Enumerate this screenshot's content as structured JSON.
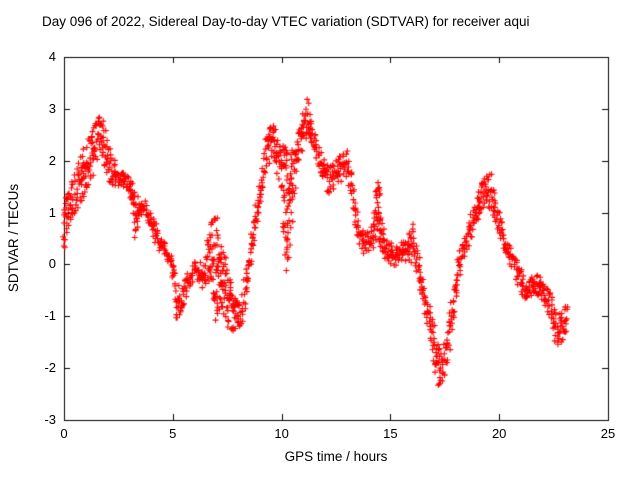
{
  "chart_data": {
    "type": "scatter",
    "title": "Day 096 of 2022, Sidereal Day-to-day VTEC variation (SDTVAR) for receiver aqui",
    "xlabel": "GPS time / hours",
    "ylabel": "SDTVAR / TECUs",
    "xlim": [
      0,
      25
    ],
    "ylim": [
      -3,
      4
    ],
    "xticks": [
      0,
      5,
      10,
      15,
      20,
      25
    ],
    "yticks": [
      -3,
      -2,
      -1,
      0,
      1,
      2,
      3,
      4
    ],
    "grid": false,
    "legend": "none",
    "marker": "plus",
    "series_color": "#ff0000",
    "axis_color": "#000000",
    "series_name": "SDTVAR",
    "points_note": "each point is [gps_hour, sdtvar_center_tecu, vertical_spread_tecu]",
    "points": [
      [
        0.0,
        0.8,
        1.0
      ],
      [
        0.2,
        1.05,
        0.7
      ],
      [
        0.4,
        1.25,
        0.7
      ],
      [
        0.6,
        1.45,
        0.8
      ],
      [
        0.8,
        1.65,
        0.9
      ],
      [
        1.0,
        1.85,
        1.0
      ],
      [
        1.2,
        2.05,
        0.9
      ],
      [
        1.4,
        2.25,
        0.9
      ],
      [
        1.6,
        2.5,
        0.7
      ],
      [
        1.8,
        2.45,
        0.8
      ],
      [
        2.0,
        2.1,
        0.8
      ],
      [
        2.2,
        1.8,
        0.6
      ],
      [
        2.4,
        1.7,
        0.45
      ],
      [
        2.6,
        1.65,
        0.35
      ],
      [
        2.8,
        1.6,
        0.35
      ],
      [
        3.0,
        1.5,
        0.4
      ],
      [
        3.15,
        1.35,
        0.5
      ],
      [
        3.3,
        0.95,
        0.9
      ],
      [
        3.45,
        1.1,
        0.4
      ],
      [
        3.6,
        1.1,
        0.3
      ],
      [
        3.8,
        1.05,
        0.3
      ],
      [
        4.0,
        0.9,
        0.4
      ],
      [
        4.2,
        0.6,
        0.45
      ],
      [
        4.4,
        0.4,
        0.35
      ],
      [
        4.6,
        0.3,
        0.3
      ],
      [
        4.8,
        0.15,
        0.3
      ],
      [
        5.0,
        -0.05,
        0.5
      ],
      [
        5.2,
        -0.7,
        0.8
      ],
      [
        5.4,
        -0.7,
        0.5
      ],
      [
        5.6,
        -0.45,
        0.4
      ],
      [
        5.8,
        -0.25,
        0.35
      ],
      [
        6.0,
        -0.1,
        0.3
      ],
      [
        6.2,
        -0.15,
        0.35
      ],
      [
        6.4,
        -0.2,
        0.5
      ],
      [
        6.6,
        0.15,
        0.9
      ],
      [
        6.8,
        0.3,
        1.4
      ],
      [
        7.0,
        -0.1,
        2.0
      ],
      [
        7.2,
        -0.35,
        1.6
      ],
      [
        7.4,
        -0.5,
        1.4
      ],
      [
        7.6,
        -0.7,
        1.1
      ],
      [
        7.8,
        -0.9,
        0.8
      ],
      [
        8.0,
        -1.0,
        0.6
      ],
      [
        8.2,
        -0.85,
        0.55
      ],
      [
        8.4,
        -0.3,
        0.6
      ],
      [
        8.6,
        0.3,
        0.6
      ],
      [
        8.8,
        0.85,
        0.6
      ],
      [
        9.0,
        1.35,
        0.6
      ],
      [
        9.2,
        1.8,
        0.7
      ],
      [
        9.4,
        2.3,
        0.8
      ],
      [
        9.6,
        2.45,
        0.6
      ],
      [
        9.8,
        2.1,
        0.8
      ],
      [
        10.0,
        1.85,
        1.0
      ],
      [
        10.2,
        1.0,
        2.6
      ],
      [
        10.4,
        1.25,
        1.8
      ],
      [
        10.6,
        1.8,
        1.0
      ],
      [
        10.8,
        2.2,
        0.8
      ],
      [
        11.0,
        2.65,
        0.8
      ],
      [
        11.2,
        2.9,
        0.75
      ],
      [
        11.4,
        2.6,
        0.6
      ],
      [
        11.6,
        2.25,
        0.55
      ],
      [
        11.8,
        1.95,
        0.5
      ],
      [
        12.0,
        1.75,
        0.6
      ],
      [
        12.2,
        1.6,
        0.55
      ],
      [
        12.4,
        1.7,
        0.5
      ],
      [
        12.6,
        1.8,
        0.5
      ],
      [
        12.8,
        1.9,
        0.5
      ],
      [
        13.0,
        1.95,
        0.55
      ],
      [
        13.2,
        1.55,
        0.55
      ],
      [
        13.4,
        0.95,
        0.6
      ],
      [
        13.6,
        0.55,
        0.5
      ],
      [
        13.8,
        0.4,
        0.4
      ],
      [
        14.0,
        0.45,
        0.4
      ],
      [
        14.2,
        0.55,
        0.5
      ],
      [
        14.45,
        1.1,
        1.3
      ],
      [
        14.6,
        0.6,
        0.8
      ],
      [
        14.8,
        0.3,
        0.5
      ],
      [
        15.0,
        0.2,
        0.45
      ],
      [
        15.2,
        0.15,
        0.4
      ],
      [
        15.4,
        0.2,
        0.4
      ],
      [
        15.6,
        0.25,
        0.4
      ],
      [
        15.8,
        0.3,
        0.5
      ],
      [
        16.0,
        0.4,
        0.9
      ],
      [
        16.2,
        0.1,
        0.55
      ],
      [
        16.4,
        -0.3,
        0.5
      ],
      [
        16.6,
        -0.7,
        0.5
      ],
      [
        16.8,
        -1.1,
        0.6
      ],
      [
        17.0,
        -1.5,
        0.8
      ],
      [
        17.2,
        -1.9,
        0.9
      ],
      [
        17.4,
        -2.1,
        0.7
      ],
      [
        17.6,
        -1.6,
        0.8
      ],
      [
        17.8,
        -1.0,
        0.7
      ],
      [
        18.0,
        -0.4,
        0.65
      ],
      [
        18.2,
        0.0,
        0.55
      ],
      [
        18.4,
        0.3,
        0.5
      ],
      [
        18.6,
        0.6,
        0.5
      ],
      [
        18.8,
        0.9,
        0.55
      ],
      [
        19.0,
        1.1,
        0.6
      ],
      [
        19.2,
        1.3,
        0.6
      ],
      [
        19.4,
        1.45,
        0.6
      ],
      [
        19.6,
        1.4,
        0.7
      ],
      [
        19.8,
        1.1,
        0.65
      ],
      [
        20.0,
        0.8,
        0.5
      ],
      [
        20.2,
        0.5,
        0.45
      ],
      [
        20.4,
        0.3,
        0.4
      ],
      [
        20.6,
        0.1,
        0.4
      ],
      [
        20.8,
        -0.1,
        0.4
      ],
      [
        21.0,
        -0.35,
        0.5
      ],
      [
        21.2,
        -0.5,
        0.45
      ],
      [
        21.4,
        -0.45,
        0.4
      ],
      [
        21.6,
        -0.35,
        0.4
      ],
      [
        21.8,
        -0.4,
        0.4
      ],
      [
        22.0,
        -0.5,
        0.5
      ],
      [
        22.2,
        -0.7,
        0.5
      ],
      [
        22.4,
        -0.9,
        0.55
      ],
      [
        22.6,
        -1.2,
        0.6
      ],
      [
        22.8,
        -1.3,
        0.7
      ],
      [
        23.0,
        -1.1,
        0.6
      ],
      [
        23.2,
        -1.0,
        0.5
      ]
    ]
  }
}
